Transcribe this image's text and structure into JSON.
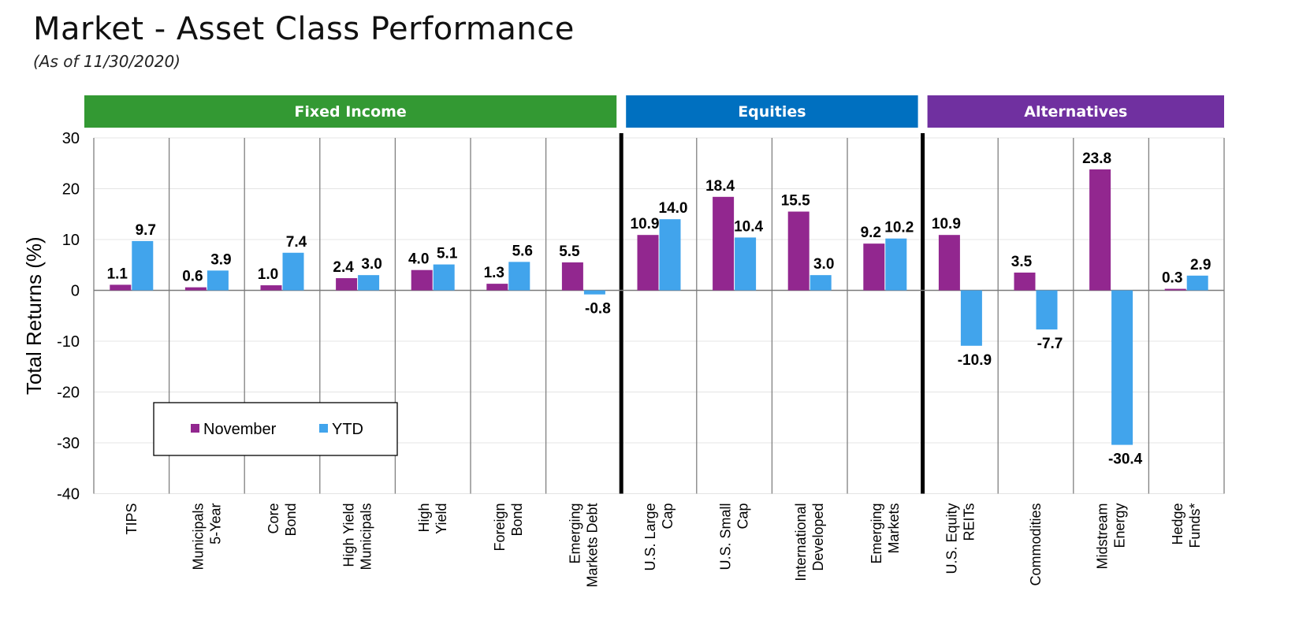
{
  "header": {
    "title": "Market - Asset Class Performance",
    "subtitle": "(As of 11/30/2020)"
  },
  "chart_data": {
    "type": "bar",
    "title": "Market - Asset Class Performance",
    "subtitle": "(As of 11/30/2020)",
    "ylabel": "Total Returns (%)",
    "xlabel": "",
    "ylim": [
      -40,
      30
    ],
    "yticks": [
      30,
      20,
      10,
      0,
      -10,
      -20,
      -30,
      -40
    ],
    "grid": true,
    "legend_position": "lower-left",
    "groups": [
      {
        "label": "Fixed Income",
        "color": "#339933",
        "categories": 7
      },
      {
        "label": "Equities",
        "color": "#0070C0",
        "categories": 4
      },
      {
        "label": "Alternatives",
        "color": "#7030A0",
        "categories": 4
      }
    ],
    "categories": [
      [
        "TIPS"
      ],
      [
        "Municipals",
        "5-Year"
      ],
      [
        "Core",
        "Bond"
      ],
      [
        "High Yield",
        "Municipals"
      ],
      [
        "High",
        "Yield"
      ],
      [
        "Foreign",
        "Bond"
      ],
      [
        "Emerging",
        "Markets Debt"
      ],
      [
        "U.S. Large",
        "Cap"
      ],
      [
        "U.S. Small",
        "Cap"
      ],
      [
        "International",
        "Developed"
      ],
      [
        "Emerging",
        "Markets"
      ],
      [
        "U.S. Equity",
        "REITs"
      ],
      [
        "Commodities"
      ],
      [
        "Midstream",
        "Energy"
      ],
      [
        "Hedge",
        "Funds*"
      ]
    ],
    "series": [
      {
        "name": "November",
        "color": "#92278F",
        "values": [
          1.1,
          0.6,
          1.0,
          2.4,
          4.0,
          1.3,
          5.5,
          10.9,
          18.4,
          15.5,
          9.2,
          10.9,
          3.5,
          23.8,
          0.3
        ],
        "labels": [
          "1.1",
          "0.6",
          "1.0",
          "2.4",
          "4.0",
          "1.3",
          "5.5",
          "10.9",
          "18.4",
          "15.5",
          "9.2",
          "10.9",
          "3.5",
          "23.8",
          "0.3"
        ]
      },
      {
        "name": "YTD",
        "color": "#41A4EC",
        "values": [
          9.7,
          3.9,
          7.4,
          3.0,
          5.1,
          5.6,
          -0.8,
          14.0,
          10.4,
          3.0,
          10.2,
          -10.9,
          -7.7,
          -30.4,
          2.9
        ],
        "labels": [
          "9.7",
          "3.9",
          "7.4",
          "3.0",
          "5.1",
          "5.6",
          "-0.8",
          "14.0",
          "10.4",
          "3.0",
          "10.2",
          "-10.9",
          "-7.7",
          "-30.4",
          "2.9"
        ]
      }
    ]
  }
}
